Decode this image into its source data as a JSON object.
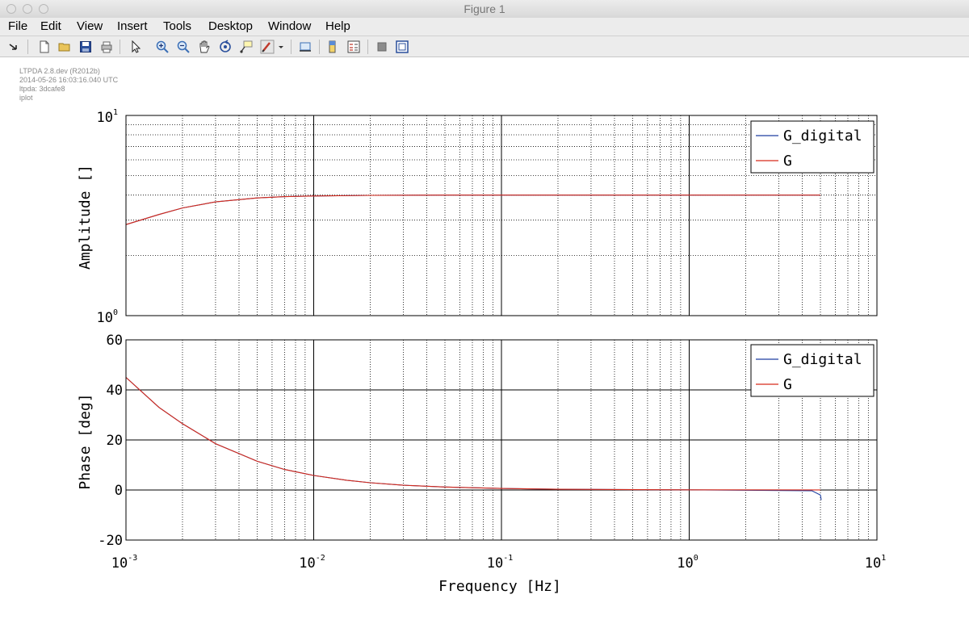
{
  "window": {
    "title": "Figure 1"
  },
  "menu": [
    "File",
    "Edit",
    "View",
    "Insert",
    "Tools",
    "Desktop",
    "Window",
    "Help"
  ],
  "toolbar": {
    "icons": [
      "dock-arrow-icon",
      "new-figure-icon",
      "open-file-icon",
      "save-icon",
      "print-icon",
      "pointer-icon",
      "zoom-in-icon",
      "zoom-out-icon",
      "pan-icon",
      "rotate-3d-icon",
      "data-cursor-icon",
      "brush-icon",
      "link-plot-icon",
      "colorbar-icon",
      "legend-icon",
      "hide-plot-tools-icon",
      "show-plot-tools-icon"
    ]
  },
  "metadata": {
    "version": "LTPDA 2.8.dev (R2012b)",
    "timestamp": "2014-05-26 16:03:16.040 UTC",
    "hash": "ltpda: 3dcafe8",
    "method": "iplot"
  },
  "colors": {
    "g_digital": "#1f3fa0",
    "g": "#d62a1a",
    "grid_major": "#000000",
    "grid_minor": "#000000"
  },
  "chart_data": [
    {
      "type": "line",
      "xscale": "log",
      "yscale": "log",
      "xlim": [
        0.001,
        10
      ],
      "ylim": [
        1,
        10
      ],
      "ylabel": "Amplitude  []",
      "xlabel": "",
      "legend_position": "top-right",
      "x_ticks": [
        "10^-3",
        "10^-2",
        "10^-1",
        "10^0",
        "10^1"
      ],
      "y_ticks": [
        "10^0",
        "10^1"
      ],
      "series": [
        {
          "name": "G_digital",
          "x": [
            0.001,
            0.0015,
            0.002,
            0.003,
            0.005,
            0.007,
            0.01,
            0.02,
            0.05,
            0.1,
            1,
            5
          ],
          "y": [
            2.85,
            3.2,
            3.45,
            3.7,
            3.87,
            3.93,
            3.96,
            3.99,
            4.0,
            4.0,
            4.0,
            4.0
          ]
        },
        {
          "name": "G",
          "x": [
            0.001,
            0.0015,
            0.002,
            0.003,
            0.005,
            0.007,
            0.01,
            0.02,
            0.05,
            0.1,
            1,
            5
          ],
          "y": [
            2.85,
            3.2,
            3.45,
            3.7,
            3.87,
            3.93,
            3.96,
            3.99,
            4.0,
            4.0,
            4.0,
            4.0
          ]
        }
      ]
    },
    {
      "type": "line",
      "xscale": "log",
      "yscale": "linear",
      "xlim": [
        0.001,
        10
      ],
      "ylim": [
        -20,
        60
      ],
      "ylabel": "Phase  [deg]",
      "xlabel": "Frequency  [Hz]",
      "legend_position": "top-right",
      "x_ticks": [
        "10^-3",
        "10^-2",
        "10^-1",
        "10^0",
        "10^1"
      ],
      "y_ticks": [
        -20,
        0,
        20,
        40,
        60
      ],
      "series": [
        {
          "name": "G_digital",
          "x": [
            0.001,
            0.0015,
            0.002,
            0.003,
            0.005,
            0.007,
            0.01,
            0.015,
            0.02,
            0.03,
            0.05,
            0.1,
            0.2,
            1,
            4.5,
            5,
            5.05
          ],
          "y": [
            45,
            33,
            26.5,
            18.5,
            11.5,
            8.2,
            5.8,
            3.9,
            2.9,
            1.9,
            1.2,
            0.6,
            0.3,
            0.05,
            -0.3,
            -2,
            -4
          ]
        },
        {
          "name": "G",
          "x": [
            0.001,
            0.0015,
            0.002,
            0.003,
            0.005,
            0.007,
            0.01,
            0.015,
            0.02,
            0.03,
            0.05,
            0.1,
            0.2,
            1,
            5
          ],
          "y": [
            45,
            33,
            26.5,
            18.5,
            11.5,
            8.2,
            5.8,
            3.9,
            2.9,
            1.9,
            1.2,
            0.6,
            0.3,
            0.06,
            0.03
          ]
        }
      ]
    }
  ]
}
